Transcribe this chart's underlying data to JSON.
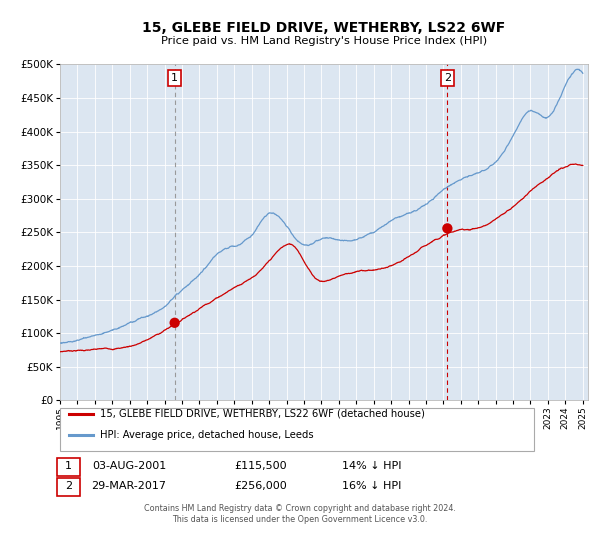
{
  "title": "15, GLEBE FIELD DRIVE, WETHERBY, LS22 6WF",
  "subtitle": "Price paid vs. HM Land Registry's House Price Index (HPI)",
  "legend_line1": "15, GLEBE FIELD DRIVE, WETHERBY, LS22 6WF (detached house)",
  "legend_line2": "HPI: Average price, detached house, Leeds",
  "annotation1_date": "03-AUG-2001",
  "annotation1_price": "£115,500",
  "annotation1_hpi": "14% ↓ HPI",
  "annotation2_date": "29-MAR-2017",
  "annotation2_price": "£256,000",
  "annotation2_hpi": "16% ↓ HPI",
  "footer1": "Contains HM Land Registry data © Crown copyright and database right 2024.",
  "footer2": "This data is licensed under the Open Government Licence v3.0.",
  "bg_color": "#dce6f1",
  "line_color_red": "#cc0000",
  "line_color_blue": "#6699cc",
  "marker_color": "#cc0000",
  "vline1_color": "#999999",
  "vline2_color": "#cc0000",
  "ylim": [
    0,
    500000
  ],
  "yticks": [
    0,
    50000,
    100000,
    150000,
    200000,
    250000,
    300000,
    350000,
    400000,
    450000,
    500000
  ],
  "sale1_year": 2001.58,
  "sale1_price": 115500,
  "sale2_year": 2017.23,
  "sale2_price": 256000
}
